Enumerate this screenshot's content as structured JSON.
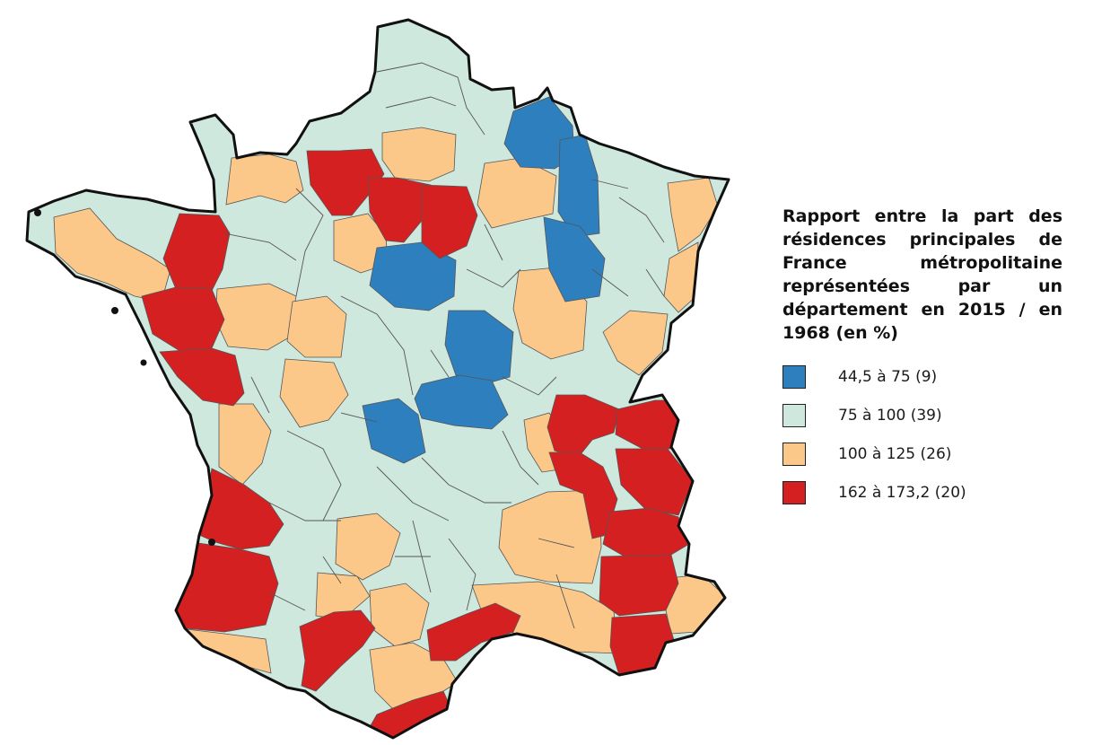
{
  "legend": {
    "title": "Rapport entre la part des résidences principales de France métropolitaine représentées par un département en 2015 / en 1968 (en %)",
    "classes": [
      {
        "label": "44,5 à 75 (9)",
        "color": "#2e7fbe"
      },
      {
        "label": "75 à 100 (39)",
        "color": "#cfe8de"
      },
      {
        "label": "100 à 125 (26)",
        "color": "#fbc88a"
      },
      {
        "label": "162 à 173,2 (20)",
        "color": "#d42020"
      }
    ]
  },
  "map": {
    "border_color": "#111111",
    "department_line_color": "#555555"
  }
}
